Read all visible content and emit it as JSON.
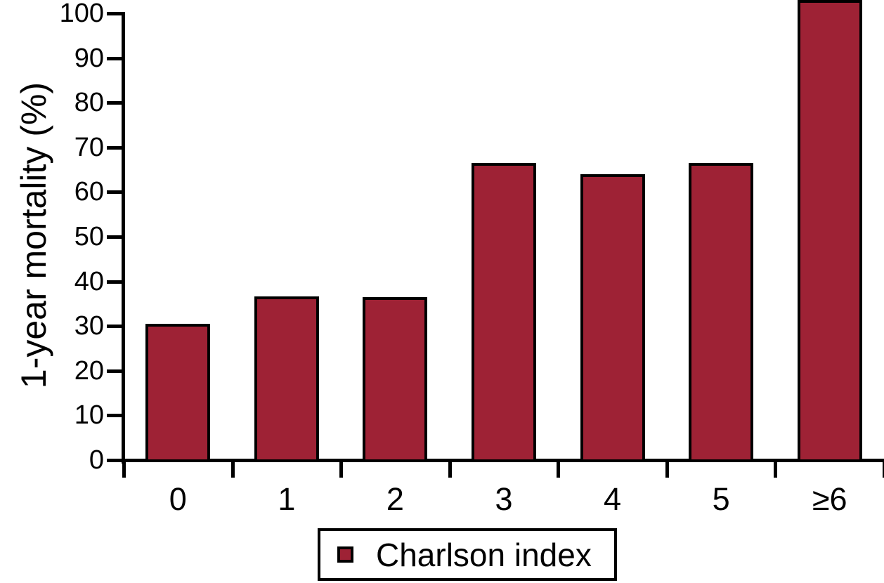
{
  "chart_data": {
    "type": "bar",
    "title": "",
    "categories": [
      "0",
      "1",
      "2",
      "3",
      "4",
      "5",
      "≥6"
    ],
    "values": [
      30.5,
      36.7,
      36.5,
      66.5,
      64,
      66.5,
      103
    ],
    "series_name": "Charlson index",
    "xlabel": "",
    "ylabel": "1-year mortality (%)",
    "ylim": [
      0,
      100
    ],
    "yticks": [
      0,
      10,
      20,
      30,
      40,
      50,
      60,
      70,
      80,
      90,
      100
    ],
    "grid": false,
    "legend_position": "bottom-center",
    "bar_color": "#9e2235",
    "axis_color": "#000000",
    "note": "bar for ≥6 is drawn extending above the 100% axis maximum"
  }
}
